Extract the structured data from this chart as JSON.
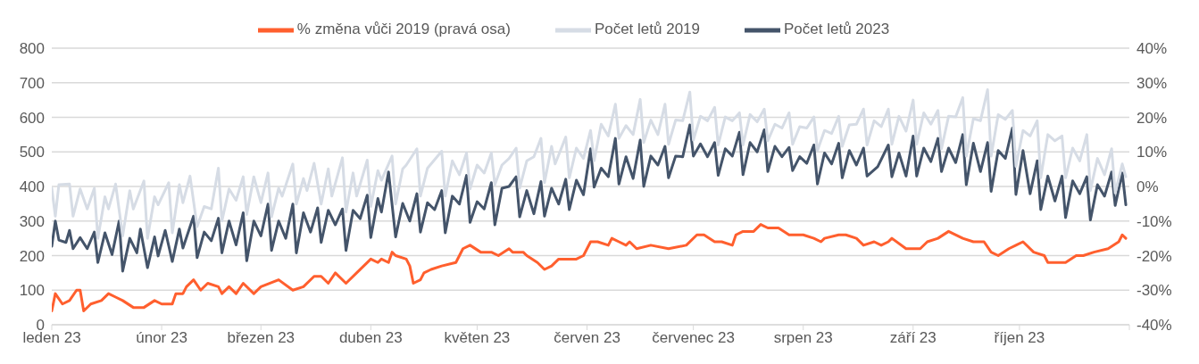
{
  "chart_data": {
    "type": "line",
    "legend": "top",
    "grid": "y",
    "xlim": [
      "2023-01-01",
      "2023-11-01"
    ],
    "xticks": [
      {
        "value": "2023-01-01",
        "label": "leden 23"
      },
      {
        "value": "2023-02-01",
        "label": "únor 23"
      },
      {
        "value": "2023-03-01",
        "label": "březen 23"
      },
      {
        "value": "2023-04-01",
        "label": "duben 23"
      },
      {
        "value": "2023-05-01",
        "label": "květen 23"
      },
      {
        "value": "2023-06-01",
        "label": "červen 23"
      },
      {
        "value": "2023-07-01",
        "label": "červenec 23"
      },
      {
        "value": "2023-08-01",
        "label": "srpen 23"
      },
      {
        "value": "2023-09-01",
        "label": "září 23"
      },
      {
        "value": "2023-10-01",
        "label": "říjen 23"
      },
      {
        "value": "2023-11-01",
        "label": null
      }
    ],
    "ylim": [
      0,
      800
    ],
    "yticks": [
      0,
      100,
      200,
      300,
      400,
      500,
      600,
      700,
      800
    ],
    "y2lim": [
      -40,
      40
    ],
    "y2ticks": [
      {
        "value": -40,
        "label": "-40%"
      },
      {
        "value": -30,
        "label": "-30%"
      },
      {
        "value": -20,
        "label": "-20%"
      },
      {
        "value": -10,
        "label": "-10%"
      },
      {
        "value": 0,
        "label": "0%"
      },
      {
        "value": 10,
        "label": "10%"
      },
      {
        "value": 20,
        "label": "20%"
      },
      {
        "value": 30,
        "label": "30%"
      },
      {
        "value": 40,
        "label": "40%"
      }
    ],
    "series": [
      {
        "name": "Počet letů 2023",
        "color": "#44546a",
        "x": [
          "2023-01-01",
          "2023-01-02",
          "2023-01-03",
          "2023-01-05",
          "2023-01-06",
          "2023-01-07",
          "2023-01-09",
          "2023-01-11",
          "2023-01-13",
          "2023-01-14",
          "2023-01-16",
          "2023-01-18",
          "2023-01-20",
          "2023-01-21",
          "2023-01-23",
          "2023-01-25",
          "2023-01-26",
          "2023-01-28",
          "2023-01-30",
          "2023-01-31",
          "2023-02-02",
          "2023-02-04",
          "2023-02-06",
          "2023-02-07",
          "2023-02-10",
          "2023-02-11",
          "2023-02-13",
          "2023-02-15",
          "2023-02-17",
          "2023-02-18",
          "2023-02-20",
          "2023-02-22",
          "2023-02-24",
          "2023-02-25",
          "2023-02-27",
          "2023-03-01",
          "2023-03-03",
          "2023-03-04",
          "2023-03-06",
          "2023-03-08",
          "2023-03-10",
          "2023-03-11",
          "2023-03-13",
          "2023-03-15",
          "2023-03-17",
          "2023-03-18",
          "2023-03-20",
          "2023-03-22",
          "2023-03-24",
          "2023-03-25",
          "2023-03-27",
          "2023-03-29",
          "2023-03-31",
          "2023-04-01",
          "2023-04-03",
          "2023-04-04",
          "2023-04-06",
          "2023-04-08",
          "2023-04-10",
          "2023-04-12",
          "2023-04-14",
          "2023-04-15",
          "2023-04-17",
          "2023-04-19",
          "2023-04-21",
          "2023-04-22",
          "2023-04-24",
          "2023-04-26",
          "2023-04-28",
          "2023-04-29",
          "2023-05-01",
          "2023-05-03",
          "2023-05-05",
          "2023-05-06",
          "2023-05-08",
          "2023-05-10",
          "2023-05-12",
          "2023-05-13",
          "2023-05-15",
          "2023-05-17",
          "2023-05-19",
          "2023-05-20",
          "2023-05-22",
          "2023-05-24",
          "2023-05-26",
          "2023-05-27",
          "2023-05-29",
          "2023-05-31",
          "2023-06-02",
          "2023-06-03",
          "2023-06-05",
          "2023-06-07",
          "2023-06-09",
          "2023-06-10",
          "2023-06-12",
          "2023-06-14",
          "2023-06-16",
          "2023-06-17",
          "2023-06-19",
          "2023-06-21",
          "2023-06-23",
          "2023-06-24",
          "2023-06-26",
          "2023-06-28",
          "2023-06-30",
          "2023-07-01",
          "2023-07-03",
          "2023-07-05",
          "2023-07-07",
          "2023-07-08",
          "2023-07-10",
          "2023-07-12",
          "2023-07-14",
          "2023-07-15",
          "2023-07-17",
          "2023-07-19",
          "2023-07-21",
          "2023-07-22",
          "2023-07-24",
          "2023-07-26",
          "2023-07-28",
          "2023-07-29",
          "2023-07-31",
          "2023-08-02",
          "2023-08-04",
          "2023-08-05",
          "2023-08-07",
          "2023-08-09",
          "2023-08-11",
          "2023-08-12",
          "2023-08-14",
          "2023-08-16",
          "2023-08-18",
          "2023-08-19",
          "2023-08-22",
          "2023-08-25",
          "2023-08-26",
          "2023-08-28",
          "2023-08-30",
          "2023-09-01",
          "2023-09-02",
          "2023-09-04",
          "2023-09-06",
          "2023-09-08",
          "2023-09-09",
          "2023-09-11",
          "2023-09-13",
          "2023-09-15",
          "2023-09-16",
          "2023-09-18",
          "2023-09-20",
          "2023-09-22",
          "2023-09-23",
          "2023-09-25",
          "2023-09-27",
          "2023-09-29",
          "2023-09-30",
          "2023-10-02",
          "2023-10-04",
          "2023-10-06",
          "2023-10-07",
          "2023-10-09",
          "2023-10-11",
          "2023-10-13",
          "2023-10-14",
          "2023-10-16",
          "2023-10-18",
          "2023-10-20",
          "2023-10-21",
          "2023-10-23",
          "2023-10-25",
          "2023-10-27",
          "2023-10-28",
          "2023-10-30",
          "2023-10-31"
        ],
        "values": [
          227,
          300,
          245,
          238,
          273,
          220,
          252,
          220,
          268,
          180,
          266,
          203,
          300,
          155,
          250,
          208,
          277,
          165,
          254,
          199,
          273,
          183,
          277,
          222,
          314,
          194,
          268,
          243,
          308,
          208,
          300,
          231,
          324,
          185,
          300,
          257,
          349,
          215,
          300,
          250,
          349,
          208,
          324,
          268,
          338,
          238,
          331,
          289,
          335,
          215,
          331,
          307,
          375,
          252,
          365,
          326,
          442,
          254,
          351,
          300,
          379,
          268,
          353,
          333,
          388,
          266,
          372,
          349,
          432,
          296,
          356,
          335,
          411,
          289,
          395,
          400,
          428,
          312,
          388,
          321,
          414,
          314,
          395,
          349,
          421,
          333,
          418,
          376,
          509,
          398,
          453,
          428,
          539,
          407,
          486,
          423,
          534,
          400,
          488,
          462,
          516,
          425,
          488,
          486,
          578,
          488,
          523,
          486,
          527,
          432,
          509,
          488,
          557,
          434,
          527,
          500,
          564,
          443,
          516,
          486,
          513,
          446,
          486,
          467,
          520,
          407,
          497,
          465,
          525,
          425,
          504,
          462,
          511,
          430,
          457,
          520,
          428,
          497,
          430,
          546,
          430,
          511,
          472,
          539,
          443,
          511,
          469,
          550,
          405,
          525,
          443,
          527,
          386,
          504,
          481,
          569,
          377,
          504,
          379,
          474,
          333,
          430,
          358,
          430,
          310,
          416,
          379,
          428,
          303,
          405,
          372,
          442,
          345,
          439,
          347
        ]
      },
      {
        "name": "Počet letů 2019",
        "color": "#d6dce5",
        "x": [
          "2023-01-01",
          "2023-01-02",
          "2023-01-03",
          "2023-01-06",
          "2023-01-07",
          "2023-01-09",
          "2023-01-11",
          "2023-01-13",
          "2023-01-14",
          "2023-01-16",
          "2023-01-17",
          "2023-01-19",
          "2023-01-21",
          "2023-01-23",
          "2023-01-24",
          "2023-01-27",
          "2023-01-28",
          "2023-01-30",
          "2023-01-31",
          "2023-02-03",
          "2023-02-04",
          "2023-02-06",
          "2023-02-07",
          "2023-02-09",
          "2023-02-11",
          "2023-02-13",
          "2023-02-15",
          "2023-02-17",
          "2023-02-18",
          "2023-02-20",
          "2023-02-22",
          "2023-02-24",
          "2023-02-25",
          "2023-02-27",
          "2023-03-01",
          "2023-03-03",
          "2023-03-04",
          "2023-03-06",
          "2023-03-07",
          "2023-03-10",
          "2023-03-11",
          "2023-03-13",
          "2023-03-14",
          "2023-03-16",
          "2023-03-18",
          "2023-03-20",
          "2023-03-21",
          "2023-03-24",
          "2023-03-25",
          "2023-03-27",
          "2023-03-28",
          "2023-03-31",
          "2023-04-01",
          "2023-04-03",
          "2023-04-04",
          "2023-04-07",
          "2023-04-08",
          "2023-04-10",
          "2023-04-11",
          "2023-04-14",
          "2023-04-15",
          "2023-04-17",
          "2023-04-18",
          "2023-04-21",
          "2023-04-22",
          "2023-04-24",
          "2023-04-26",
          "2023-04-28",
          "2023-04-29",
          "2023-05-01",
          "2023-05-03",
          "2023-05-05",
          "2023-05-06",
          "2023-05-08",
          "2023-05-10",
          "2023-05-12",
          "2023-05-13",
          "2023-05-15",
          "2023-05-17",
          "2023-05-19",
          "2023-05-20",
          "2023-05-22",
          "2023-05-23",
          "2023-05-26",
          "2023-05-27",
          "2023-05-29",
          "2023-05-31",
          "2023-06-02",
          "2023-06-03",
          "2023-06-05",
          "2023-06-07",
          "2023-06-09",
          "2023-06-10",
          "2023-06-12",
          "2023-06-14",
          "2023-06-16",
          "2023-06-17",
          "2023-06-19",
          "2023-06-21",
          "2023-06-23",
          "2023-06-24",
          "2023-06-26",
          "2023-06-28",
          "2023-06-30",
          "2023-07-01",
          "2023-07-03",
          "2023-07-05",
          "2023-07-07",
          "2023-07-08",
          "2023-07-10",
          "2023-07-12",
          "2023-07-14",
          "2023-07-15",
          "2023-07-17",
          "2023-07-19",
          "2023-07-21",
          "2023-07-22",
          "2023-07-24",
          "2023-07-26",
          "2023-07-28",
          "2023-07-29",
          "2023-07-31",
          "2023-08-02",
          "2023-08-04",
          "2023-08-05",
          "2023-08-07",
          "2023-08-09",
          "2023-08-11",
          "2023-08-12",
          "2023-08-14",
          "2023-08-16",
          "2023-08-18",
          "2023-08-19",
          "2023-08-21",
          "2023-08-23",
          "2023-08-25",
          "2023-08-26",
          "2023-08-28",
          "2023-08-30",
          "2023-09-01",
          "2023-09-02",
          "2023-09-04",
          "2023-09-06",
          "2023-09-08",
          "2023-09-09",
          "2023-09-11",
          "2023-09-13",
          "2023-09-15",
          "2023-09-16",
          "2023-09-18",
          "2023-09-20",
          "2023-09-22",
          "2023-09-23",
          "2023-09-25",
          "2023-09-27",
          "2023-09-29",
          "2023-09-30",
          "2023-10-02",
          "2023-10-04",
          "2023-10-06",
          "2023-10-07",
          "2023-10-09",
          "2023-10-11",
          "2023-10-13",
          "2023-10-14",
          "2023-10-16",
          "2023-10-18",
          "2023-10-20",
          "2023-10-21",
          "2023-10-23",
          "2023-10-25",
          "2023-10-27",
          "2023-10-28",
          "2023-10-30",
          "2023-10-31"
        ],
        "values": [
          395,
          314,
          405,
          407,
          314,
          393,
          335,
          395,
          250,
          370,
          335,
          407,
          257,
          388,
          335,
          416,
          250,
          370,
          347,
          411,
          266,
          405,
          353,
          430,
          284,
          342,
          335,
          453,
          300,
          393,
          360,
          428,
          319,
          428,
          353,
          439,
          312,
          395,
          372,
          465,
          349,
          423,
          388,
          467,
          349,
          451,
          372,
          483,
          326,
          439,
          372,
          476,
          342,
          446,
          418,
          488,
          349,
          451,
          462,
          509,
          372,
          453,
          465,
          502,
          372,
          474,
          434,
          497,
          393,
          462,
          439,
          497,
          405,
          462,
          481,
          511,
          395,
          474,
          486,
          539,
          411,
          516,
          465,
          543,
          425,
          511,
          481,
          562,
          474,
          580,
          546,
          638,
          539,
          576,
          550,
          652,
          527,
          592,
          550,
          638,
          522,
          592,
          590,
          673,
          534,
          603,
          590,
          629,
          520,
          601,
          590,
          613,
          520,
          608,
          587,
          624,
          532,
          580,
          569,
          613,
          522,
          573,
          569,
          601,
          504,
          562,
          553,
          603,
          516,
          578,
          580,
          624,
          520,
          590,
          573,
          624,
          522,
          603,
          560,
          650,
          522,
          613,
          580,
          620,
          509,
          603,
          601,
          657,
          488,
          596,
          590,
          680,
          488,
          608,
          594,
          620,
          458,
          562,
          546,
          590,
          425,
          550,
          532,
          546,
          425,
          511,
          474,
          550,
          388,
          481,
          434,
          509,
          381,
          465,
          428
        ]
      },
      {
        "name": "% změna vůči 2019 (pravá osa)",
        "color": "#ff5f2e",
        "axis": "y2",
        "x": [
          "2023-01-01",
          "2023-01-02",
          "2023-01-04",
          "2023-01-06",
          "2023-01-08",
          "2023-01-09",
          "2023-01-10",
          "2023-01-12",
          "2023-01-15",
          "2023-01-17",
          "2023-01-19",
          "2023-01-21",
          "2023-01-24",
          "2023-01-27",
          "2023-01-30",
          "2023-02-01",
          "2023-02-04",
          "2023-02-05",
          "2023-02-07",
          "2023-02-08",
          "2023-02-10",
          "2023-02-12",
          "2023-02-14",
          "2023-02-17",
          "2023-02-18",
          "2023-02-20",
          "2023-02-22",
          "2023-02-24",
          "2023-02-27",
          "2023-03-01",
          "2023-03-06",
          "2023-03-10",
          "2023-03-13",
          "2023-03-16",
          "2023-03-18",
          "2023-03-20",
          "2023-03-22",
          "2023-03-25",
          "2023-03-28",
          "2023-04-01",
          "2023-04-03",
          "2023-04-04",
          "2023-04-06",
          "2023-04-07",
          "2023-04-08",
          "2023-04-11",
          "2023-04-12",
          "2023-04-13",
          "2023-04-15",
          "2023-04-16",
          "2023-04-18",
          "2023-04-21",
          "2023-04-25",
          "2023-04-27",
          "2023-04-29",
          "2023-05-02",
          "2023-05-05",
          "2023-05-07",
          "2023-05-10",
          "2023-05-11",
          "2023-05-14",
          "2023-05-15",
          "2023-05-18",
          "2023-05-20",
          "2023-05-22",
          "2023-05-24",
          "2023-05-29",
          "2023-05-31",
          "2023-06-02",
          "2023-06-04",
          "2023-06-07",
          "2023-06-08",
          "2023-06-10",
          "2023-06-12",
          "2023-06-13",
          "2023-06-15",
          "2023-06-19",
          "2023-06-24",
          "2023-06-29",
          "2023-07-02",
          "2023-07-04",
          "2023-07-07",
          "2023-07-09",
          "2023-07-12",
          "2023-07-13",
          "2023-07-15",
          "2023-07-18",
          "2023-07-20",
          "2023-07-22",
          "2023-07-25",
          "2023-07-28",
          "2023-08-01",
          "2023-08-04",
          "2023-08-06",
          "2023-08-07",
          "2023-08-11",
          "2023-08-13",
          "2023-08-16",
          "2023-08-18",
          "2023-08-21",
          "2023-08-23",
          "2023-08-25",
          "2023-08-26",
          "2023-08-30",
          "2023-09-03",
          "2023-09-05",
          "2023-09-08",
          "2023-09-11",
          "2023-09-15",
          "2023-09-18",
          "2023-09-21",
          "2023-09-23",
          "2023-09-25",
          "2023-09-28",
          "2023-09-30",
          "2023-10-02",
          "2023-10-05",
          "2023-10-08",
          "2023-10-09",
          "2023-10-12",
          "2023-10-14",
          "2023-10-17",
          "2023-10-19",
          "2023-10-22",
          "2023-10-26",
          "2023-10-29",
          "2023-10-30",
          "2023-10-31"
        ],
        "values": [
          -36,
          -31,
          -34,
          -33,
          -30,
          -30,
          -36,
          -34,
          -33,
          -31,
          -32,
          -33,
          -35,
          -35,
          -33,
          -34,
          -34,
          -31,
          -31,
          -29,
          -27,
          -30,
          -28,
          -29,
          -31,
          -29,
          -31,
          -28,
          -31,
          -29,
          -27,
          -30,
          -29,
          -26,
          -26,
          -28,
          -25,
          -28,
          -25,
          -21,
          -22,
          -21,
          -22,
          -19,
          -20,
          -21,
          -23,
          -28,
          -27,
          -25,
          -24,
          -23,
          -22,
          -18,
          -17,
          -19,
          -19,
          -20,
          -18,
          -19,
          -19,
          -20,
          -22,
          -24,
          -23,
          -21,
          -21,
          -20,
          -16,
          -16,
          -17,
          -15,
          -16,
          -17,
          -16,
          -18,
          -17,
          -18,
          -17,
          -14,
          -14,
          -16,
          -16,
          -17,
          -14,
          -13,
          -13,
          -11,
          -12,
          -12,
          -14,
          -14,
          -15,
          -16,
          -15,
          -14,
          -14,
          -15,
          -17,
          -16,
          -17,
          -16,
          -15,
          -18,
          -18,
          -16,
          -15,
          -13,
          -15,
          -16,
          -16,
          -19,
          -20,
          -18,
          -17,
          -16,
          -19,
          -20,
          -22,
          -22,
          -22,
          -20,
          -20,
          -19,
          -18,
          -16,
          -14,
          -15
        ]
      }
    ]
  }
}
